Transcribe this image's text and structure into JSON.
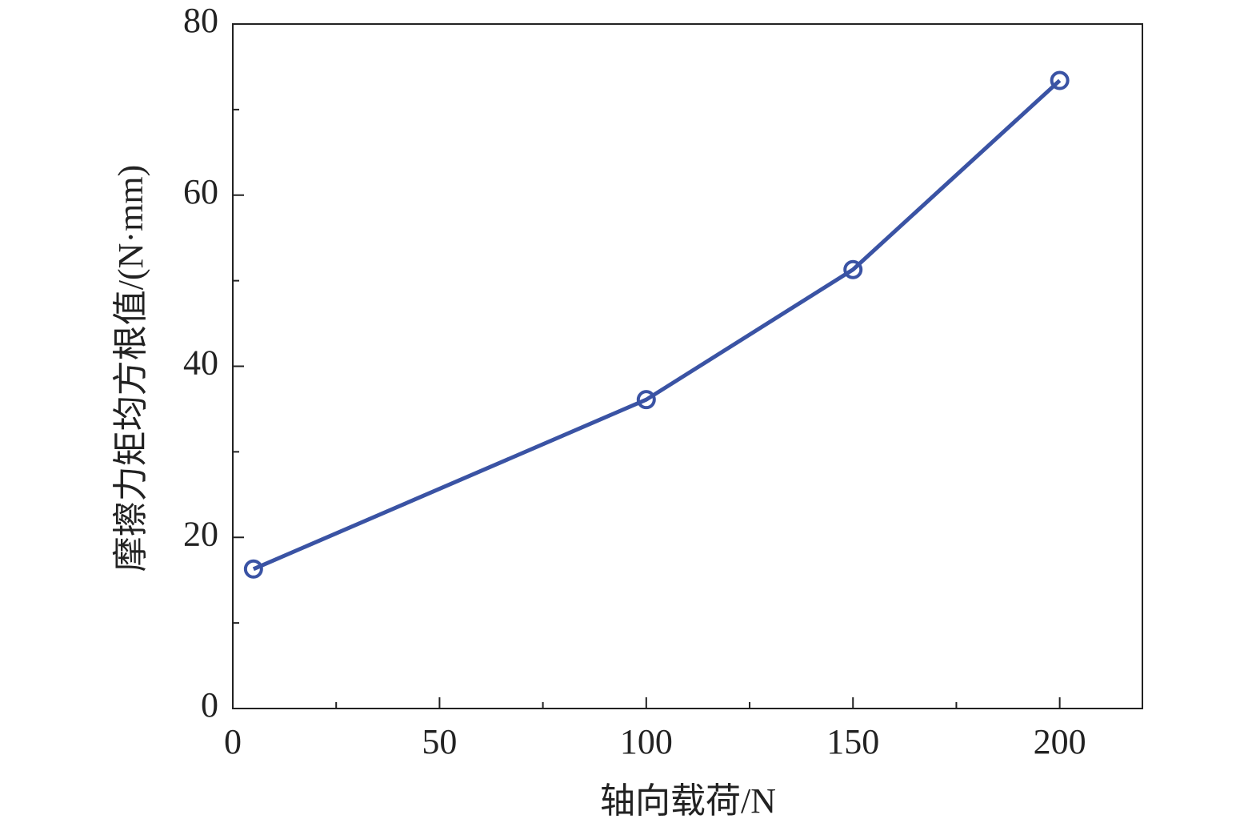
{
  "chart_data": {
    "type": "line",
    "x_label": "轴向载荷/N",
    "y_label": "摩擦力矩均方根值/(N·mm)",
    "x": [
      5,
      100,
      150,
      200
    ],
    "series": [
      {
        "color": "#3a53a4",
        "values": [
          16.3,
          36.1,
          51.3,
          73.4
        ]
      }
    ],
    "xlim": [
      0,
      220
    ],
    "ylim": [
      0,
      80
    ],
    "xticks": [
      0,
      50,
      100,
      150,
      200
    ],
    "yticks": [
      0,
      20,
      40,
      60,
      80
    ],
    "xminorticks": [
      25,
      75,
      125,
      175
    ],
    "yminorticks": [
      10,
      30,
      50,
      70
    ],
    "grid": false
  }
}
